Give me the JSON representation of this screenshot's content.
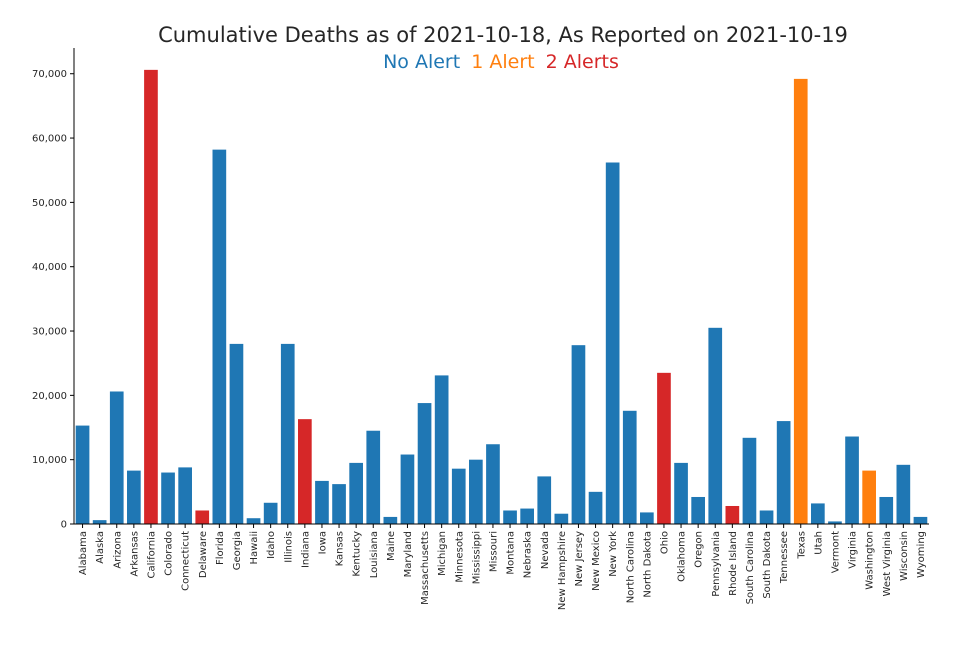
{
  "chart_data": {
    "type": "bar",
    "title": "Cumulative Deaths as of 2021-10-18, As Reported on 2021-10-19",
    "legend": [
      {
        "label": "No Alert",
        "color": "#1f77b4"
      },
      {
        "label": "1 Alert",
        "color": "#ff7f0e"
      },
      {
        "label": "2 Alerts",
        "color": "#d62728"
      }
    ],
    "legend_placement": "top-center",
    "xlabel": "",
    "ylabel": "",
    "ylim": [
      0,
      74000
    ],
    "yticks": [
      0,
      10000,
      20000,
      30000,
      40000,
      50000,
      60000,
      70000
    ],
    "ytick_labels": [
      "0",
      "10,000",
      "20,000",
      "30,000",
      "40,000",
      "50,000",
      "60,000",
      "70,000"
    ],
    "grid": false,
    "categories": [
      "Alabama",
      "Alaska",
      "Arizona",
      "Arkansas",
      "California",
      "Colorado",
      "Connecticut",
      "Delaware",
      "Florida",
      "Georgia",
      "Hawaii",
      "Idaho",
      "Illinois",
      "Indiana",
      "Iowa",
      "Kansas",
      "Kentucky",
      "Louisiana",
      "Maine",
      "Maryland",
      "Massachusetts",
      "Michigan",
      "Minnesota",
      "Mississippi",
      "Missouri",
      "Montana",
      "Nebraska",
      "Nevada",
      "New Hampshire",
      "New Jersey",
      "New Mexico",
      "New York",
      "North Carolina",
      "North Dakota",
      "Ohio",
      "Oklahoma",
      "Oregon",
      "Pennsylvania",
      "Rhode Island",
      "South Carolina",
      "South Dakota",
      "Tennessee",
      "Texas",
      "Utah",
      "Vermont",
      "Virginia",
      "Washington",
      "West Virginia",
      "Wisconsin",
      "Wyoming"
    ],
    "values": [
      15300,
      600,
      20600,
      8300,
      70600,
      8000,
      8800,
      2100,
      58200,
      28000,
      900,
      3300,
      28000,
      16300,
      6700,
      6200,
      9500,
      14500,
      1100,
      10800,
      18800,
      23100,
      8600,
      10000,
      12400,
      2100,
      2400,
      7400,
      1600,
      27800,
      5000,
      56200,
      17600,
      1800,
      23500,
      9500,
      4200,
      30500,
      2800,
      13400,
      2100,
      16000,
      69200,
      3200,
      400,
      13600,
      8300,
      4200,
      9200,
      1100
    ],
    "alerts": [
      0,
      0,
      0,
      0,
      2,
      0,
      0,
      2,
      0,
      0,
      0,
      0,
      0,
      2,
      0,
      0,
      0,
      0,
      0,
      0,
      0,
      0,
      0,
      0,
      0,
      0,
      0,
      0,
      0,
      0,
      0,
      0,
      0,
      0,
      2,
      0,
      0,
      0,
      2,
      0,
      0,
      0,
      1,
      0,
      0,
      0,
      1,
      0,
      0,
      0
    ]
  }
}
